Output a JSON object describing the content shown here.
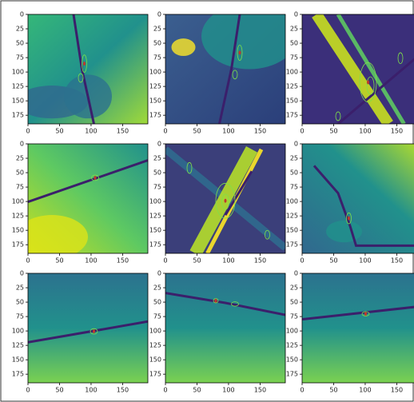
{
  "chart_data": [
    {
      "type": "image",
      "xlim": [
        0,
        190
      ],
      "ylim": [
        190,
        0
      ],
      "xticks": [
        0,
        50,
        100,
        150
      ],
      "yticks": [
        0,
        25,
        50,
        75,
        100,
        125,
        150,
        175
      ]
    },
    {
      "type": "image",
      "xlim": [
        0,
        190
      ],
      "ylim": [
        190,
        0
      ],
      "xticks": [
        0,
        50,
        100,
        150
      ],
      "yticks": [
        0,
        25,
        50,
        75,
        100,
        125,
        150,
        175
      ]
    },
    {
      "type": "image",
      "xlim": [
        0,
        190
      ],
      "ylim": [
        190,
        0
      ],
      "xticks": [
        0,
        50,
        100,
        150
      ],
      "yticks": [
        0,
        25,
        50,
        75,
        100,
        125,
        150,
        175
      ]
    },
    {
      "type": "image",
      "xlim": [
        0,
        190
      ],
      "ylim": [
        190,
        0
      ],
      "xticks": [
        0,
        50,
        100,
        150
      ],
      "yticks": [
        0,
        25,
        50,
        75,
        100,
        125,
        150,
        175
      ]
    },
    {
      "type": "image",
      "xlim": [
        0,
        190
      ],
      "ylim": [
        190,
        0
      ],
      "xticks": [
        0,
        50,
        100,
        150
      ],
      "yticks": [
        0,
        25,
        50,
        75,
        100,
        125,
        150,
        175
      ]
    },
    {
      "type": "image",
      "xlim": [
        0,
        190
      ],
      "ylim": [
        190,
        0
      ],
      "xticks": [
        0,
        50,
        100,
        150
      ],
      "yticks": [
        0,
        25,
        50,
        75,
        100,
        125,
        150,
        175
      ]
    },
    {
      "type": "image",
      "xlim": [
        0,
        190
      ],
      "ylim": [
        190,
        0
      ],
      "xticks": [
        0,
        50,
        100,
        150
      ],
      "yticks": [
        0,
        25,
        50,
        75,
        100,
        125,
        150,
        175
      ]
    },
    {
      "type": "image",
      "xlim": [
        0,
        190
      ],
      "ylim": [
        190,
        0
      ],
      "xticks": [
        0,
        50,
        100,
        150
      ],
      "yticks": [
        0,
        25,
        50,
        75,
        100,
        125,
        150,
        175
      ]
    },
    {
      "type": "image",
      "xlim": [
        0,
        190
      ],
      "ylim": [
        190,
        0
      ],
      "xticks": [
        0,
        50,
        100,
        150
      ],
      "yticks": [
        0,
        25,
        50,
        75,
        100,
        125,
        150,
        175
      ]
    }
  ]
}
